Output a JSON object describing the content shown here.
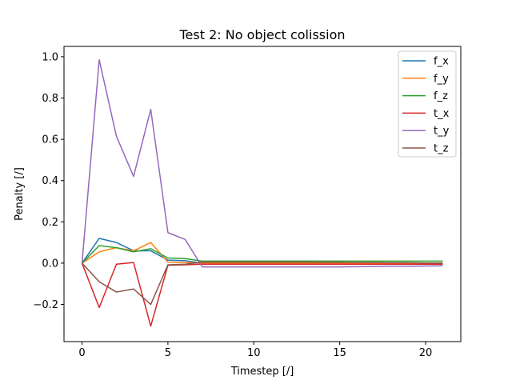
{
  "chart_data": {
    "type": "line",
    "title": "Test 2: No object colission",
    "xlabel": "Timestep [/]",
    "ylabel": "Penalty [/]",
    "xlim": [
      -1.05,
      22.05
    ],
    "ylim": [
      -0.38,
      1.05
    ],
    "xticks": [
      0,
      5,
      10,
      15,
      20
    ],
    "yticks": [
      -0.2,
      0.0,
      0.2,
      0.4,
      0.6,
      0.8,
      1.0
    ],
    "ytick_labels": [
      "−0.2",
      "0.0",
      "0.2",
      "0.4",
      "0.6",
      "0.8",
      "1.0"
    ],
    "xtick_labels": [
      "0",
      "5",
      "10",
      "15",
      "20"
    ],
    "grid": false,
    "legend_position": "top-right",
    "x": [
      0,
      1,
      2,
      3,
      4,
      5,
      6,
      7,
      8,
      9,
      10,
      11,
      12,
      13,
      14,
      15,
      16,
      17,
      18,
      19,
      20,
      21
    ],
    "series": [
      {
        "name": "f_x",
        "color": "#1f77b4",
        "values": [
          0,
          0.12,
          0.1,
          0.06,
          0.06,
          0.015,
          0.012,
          0,
          0,
          0,
          0,
          0,
          0,
          0,
          0,
          0,
          0,
          0,
          0,
          0,
          0,
          0
        ]
      },
      {
        "name": "f_y",
        "color": "#ff7f0e",
        "values": [
          0,
          0.055,
          0.075,
          0.06,
          0.1,
          0.005,
          0.003,
          0,
          0,
          0,
          0,
          0,
          0,
          0,
          0,
          0,
          0,
          0,
          0,
          0,
          0,
          0
        ]
      },
      {
        "name": "f_z",
        "color": "#2ca02c",
        "values": [
          0,
          0.085,
          0.075,
          0.055,
          0.07,
          0.025,
          0.022,
          0.01,
          0.01,
          0.01,
          0.01,
          0.01,
          0.01,
          0.01,
          0.01,
          0.01,
          0.01,
          0.01,
          0.01,
          0.01,
          0.01,
          0.01
        ]
      },
      {
        "name": "t_x",
        "color": "#d62728",
        "values": [
          0,
          -0.215,
          -0.005,
          0.003,
          -0.305,
          -0.01,
          -0.008,
          -0.005,
          -0.005,
          -0.005,
          -0.005,
          -0.005,
          -0.005,
          -0.005,
          -0.005,
          -0.005,
          -0.005,
          -0.005,
          -0.005,
          -0.005,
          -0.005,
          -0.005
        ]
      },
      {
        "name": "t_y",
        "color": "#9467bd",
        "values": [
          0,
          0.985,
          0.615,
          0.42,
          0.745,
          0.148,
          0.115,
          -0.018,
          -0.018,
          -0.018,
          -0.018,
          -0.018,
          -0.018,
          -0.018,
          -0.018,
          -0.018,
          -0.017,
          -0.016,
          -0.015,
          -0.015,
          -0.014,
          -0.013
        ]
      },
      {
        "name": "t_z",
        "color": "#8c564b",
        "values": [
          0,
          -0.09,
          -0.14,
          -0.125,
          -0.2,
          -0.008,
          -0.005,
          0.005,
          0.005,
          0.005,
          0.005,
          0.005,
          0.005,
          0.005,
          0.004,
          0.004,
          0.003,
          0.003,
          0.002,
          0.002,
          0.001,
          0.0
        ]
      }
    ]
  }
}
